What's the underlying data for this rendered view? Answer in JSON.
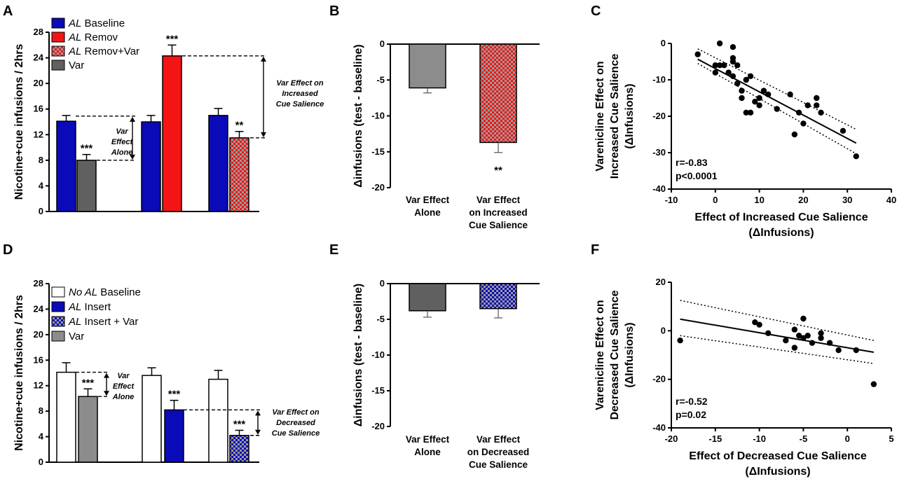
{
  "colors": {
    "blue": "#0a0ab8",
    "red": "#f51414",
    "dark_gray": "#606060",
    "mid_gray": "#8c8c8c",
    "white": "#ffffff",
    "black": "#000000"
  },
  "panels": {
    "A": {
      "label": "A"
    },
    "B": {
      "label": "B"
    },
    "C": {
      "label": "C"
    },
    "D": {
      "label": "D"
    },
    "E": {
      "label": "E"
    },
    "F": {
      "label": "F"
    }
  },
  "annotations": {
    "A_var_alone": [
      "Var",
      "Effect",
      "Alone"
    ],
    "A_var_increased": [
      "Var Effect on",
      "Increased",
      "Cue Salience"
    ],
    "D_var_alone": [
      "Var",
      "Effect",
      "Alone"
    ],
    "D_var_decreased": [
      "Var Effect on",
      "Decreased",
      "Cue Salience"
    ]
  },
  "chart_data": [
    {
      "panel": "A",
      "type": "bar",
      "ylabel": "Nicotine+cue infusions / 2hrs",
      "ylim": [
        0,
        28
      ],
      "yticks": [
        "0",
        "4",
        "8",
        "12",
        "16",
        "20",
        "24",
        "28"
      ],
      "legend": [
        {
          "italic": "AL",
          "text": " Baseline",
          "fill": "blue"
        },
        {
          "italic": "AL",
          "text": " Remov",
          "fill": "red"
        },
        {
          "italic": "AL",
          "text": " Remov+Var",
          "fill": "red_checker"
        },
        {
          "italic": "",
          "text": "Var",
          "fill": "dark_gray"
        }
      ],
      "bars": [
        {
          "value": 14.1,
          "error": 0.9,
          "fill": "blue",
          "sig": ""
        },
        {
          "value": 8.0,
          "error": 0.9,
          "fill": "dark_gray",
          "sig": "***"
        },
        {
          "value": 14.0,
          "error": 1.0,
          "fill": "blue",
          "sig": ""
        },
        {
          "value": 24.3,
          "error": 1.7,
          "fill": "red",
          "sig": "***"
        },
        {
          "value": 15.0,
          "error": 1.1,
          "fill": "blue",
          "sig": ""
        },
        {
          "value": 11.5,
          "error": 1.0,
          "fill": "red_checker",
          "sig": "**"
        }
      ]
    },
    {
      "panel": "B",
      "type": "bar",
      "ylabel": "Δinfusions (test - baseline)",
      "ylim": [
        -20,
        0
      ],
      "yticks": [
        "-20",
        "-15",
        "-10",
        "-5",
        "0"
      ],
      "categories": [
        [
          "Var Effect",
          "Alone"
        ],
        [
          "Var Effect",
          "on Increased",
          "Cue Salience"
        ]
      ],
      "bars": [
        {
          "value": -6.1,
          "error": 0.7,
          "fill": "mid_gray",
          "sig": ""
        },
        {
          "value": -13.7,
          "error": 1.4,
          "fill": "red_checker",
          "sig": "**"
        }
      ]
    },
    {
      "panel": "C",
      "type": "scatter",
      "xlabel": [
        "Effect of Increased Cue Salience",
        "(ΔInfusions)"
      ],
      "ylabel": [
        "Varenicline Effect on",
        "Increased Cue Salience",
        "(ΔInfusions)"
      ],
      "xlim": [
        -10,
        40
      ],
      "ylim": [
        -40,
        0
      ],
      "xticks": [
        "-10",
        "0",
        "10",
        "20",
        "30",
        "40"
      ],
      "yticks": [
        "-40",
        "-30",
        "-20",
        "-10",
        "0"
      ],
      "stats": [
        "r=-0.83",
        "p<0.0001"
      ],
      "fit": {
        "slope": -0.64,
        "intercept": -6.9
      },
      "ci": {
        "x0": -4,
        "x1": 32,
        "lower_at_x0": -5.5,
        "upper_at_x0": -1.5,
        "lower_at_x1": -30.3,
        "upper_at_x1": -23.6
      },
      "points": [
        [
          -4,
          -3
        ],
        [
          0,
          -8
        ],
        [
          0,
          -6
        ],
        [
          1,
          0
        ],
        [
          1,
          -6
        ],
        [
          2,
          -6
        ],
        [
          3,
          -8
        ],
        [
          4,
          -1
        ],
        [
          4,
          -4
        ],
        [
          4,
          -5
        ],
        [
          5,
          -6
        ],
        [
          4,
          -9
        ],
        [
          5,
          -11
        ],
        [
          6,
          -13
        ],
        [
          6,
          -15
        ],
        [
          7,
          -10
        ],
        [
          8,
          -9
        ],
        [
          7,
          -19
        ],
        [
          8,
          -19
        ],
        [
          9,
          -16
        ],
        [
          10,
          -15
        ],
        [
          10,
          -17
        ],
        [
          11,
          -13
        ],
        [
          12,
          -14
        ],
        [
          14,
          -18
        ],
        [
          17,
          -14
        ],
        [
          18,
          -25
        ],
        [
          19,
          -19
        ],
        [
          20,
          -22
        ],
        [
          21,
          -17
        ],
        [
          23,
          -15
        ],
        [
          23,
          -17
        ],
        [
          24,
          -19
        ],
        [
          29,
          -24
        ],
        [
          32,
          -31
        ]
      ]
    },
    {
      "panel": "D",
      "type": "bar",
      "ylabel": "Nicotine+cue infusions / 2hrs",
      "ylim": [
        0,
        28
      ],
      "yticks": [
        "0",
        "4",
        "8",
        "12",
        "16",
        "20",
        "24",
        "28"
      ],
      "legend": [
        {
          "italic": "No AL",
          "text": " Baseline",
          "fill": "white"
        },
        {
          "italic": "AL",
          "text": " Insert",
          "fill": "blue"
        },
        {
          "italic": "AL",
          "text": " Insert + Var",
          "fill": "blue_checker"
        },
        {
          "italic": "",
          "text": "Var",
          "fill": "mid_gray"
        }
      ],
      "bars": [
        {
          "value": 14.1,
          "error": 1.5,
          "fill": "white",
          "sig": ""
        },
        {
          "value": 10.3,
          "error": 1.2,
          "fill": "mid_gray",
          "sig": "***"
        },
        {
          "value": 13.6,
          "error": 1.2,
          "fill": "white",
          "sig": ""
        },
        {
          "value": 8.2,
          "error": 1.5,
          "fill": "blue",
          "sig": "***"
        },
        {
          "value": 13.0,
          "error": 1.4,
          "fill": "white",
          "sig": ""
        },
        {
          "value": 4.2,
          "error": 0.8,
          "fill": "blue_checker",
          "sig": "***"
        }
      ]
    },
    {
      "panel": "E",
      "type": "bar",
      "ylabel": "Δinfusions (test - baseline)",
      "ylim": [
        -20,
        0
      ],
      "yticks": [
        "-20",
        "-15",
        "-10",
        "-5",
        "0"
      ],
      "categories": [
        [
          "Var Effect",
          "Alone"
        ],
        [
          "Var Effect",
          "on Decreased",
          "Cue Salience"
        ]
      ],
      "bars": [
        {
          "value": -3.8,
          "error": 0.9,
          "fill": "dark_gray",
          "sig": ""
        },
        {
          "value": -3.5,
          "error": 1.3,
          "fill": "blue_checker",
          "sig": ""
        }
      ]
    },
    {
      "panel": "F",
      "type": "scatter",
      "xlabel": [
        "Effect of Decreased Cue Salience",
        "(ΔInfusions)"
      ],
      "ylabel": [
        "Varenicline Effect on",
        "Decreased Cue Salience",
        "(ΔInfusions)"
      ],
      "xlim": [
        -20,
        5
      ],
      "ylim": [
        -40,
        20
      ],
      "xticks": [
        "-20",
        "-15",
        "-10",
        "-5",
        "0",
        "5"
      ],
      "yticks": [
        "-40",
        "-20",
        "0",
        "20"
      ],
      "stats": [
        "r=-0.52",
        "p=0.02"
      ],
      "fit": {
        "slope": -0.62,
        "intercept": -7.0
      },
      "ci": {
        "x0": -19,
        "x1": 3,
        "lower_at_x0": -2,
        "upper_at_x0": 12.5,
        "lower_at_x1": -13.5,
        "upper_at_x1": -4
      },
      "points": [
        [
          -19,
          -4
        ],
        [
          -10.5,
          3.5
        ],
        [
          -10,
          2.5
        ],
        [
          -9,
          -1
        ],
        [
          -7,
          -4
        ],
        [
          -6,
          -7
        ],
        [
          -6,
          0.5
        ],
        [
          -5.5,
          -2
        ],
        [
          -5,
          -3
        ],
        [
          -5,
          5
        ],
        [
          -4.5,
          -2
        ],
        [
          -4,
          -5
        ],
        [
          -3,
          -3
        ],
        [
          -3,
          -1
        ],
        [
          -2,
          -5
        ],
        [
          -1,
          -8
        ],
        [
          1,
          -8
        ],
        [
          3,
          -22
        ]
      ]
    }
  ]
}
